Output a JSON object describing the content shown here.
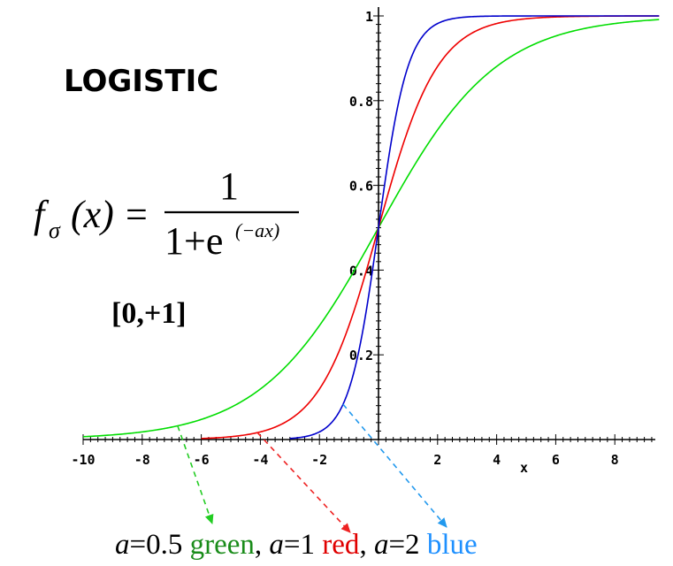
{
  "chart_data": {
    "type": "line",
    "title": "LOGISTIC",
    "formula": {
      "lhs_f": "f",
      "lhs_sub": "σ",
      "lhs_arg": "(x)",
      "eq": "=",
      "numerator": "1",
      "denom_base": "1+e",
      "denom_exp": "(−ax)"
    },
    "range_label": "[0,+1]",
    "xlabel": "x",
    "ylabel": "",
    "xlim": [
      -10,
      9.5
    ],
    "ylim": [
      0,
      1
    ],
    "x_ticks": [
      -10,
      -8,
      -6,
      -4,
      -2,
      2,
      4,
      6,
      8
    ],
    "x_tick_labels": [
      "-10",
      "-8",
      "-6",
      "-4",
      "-2",
      "2",
      "4",
      "6",
      "8"
    ],
    "y_ticks": [
      0.2,
      0.4,
      0.6,
      0.8,
      1
    ],
    "y_tick_labels": [
      "0.2",
      "0.4",
      "0.6",
      "0.8",
      "1"
    ],
    "grid": false,
    "function": "1/(1+exp(-a*x))",
    "series": [
      {
        "a": 0.5,
        "color": "#00dd00",
        "x_range": [
          -10,
          9.5
        ]
      },
      {
        "a": 1,
        "color": "#ee0000",
        "x_range": [
          -6,
          9.5
        ]
      },
      {
        "a": 2,
        "color": "#0000cc",
        "x_range": [
          -3,
          9.5
        ]
      }
    ],
    "annotations": [
      {
        "from_x": -6.8,
        "color": "#22cc22",
        "curve_a": 0.5
      },
      {
        "from_x": -4.1,
        "color": "#ee2222",
        "curve_a": 1
      },
      {
        "from_x": -1.2,
        "color": "#2299ee",
        "curve_a": 2
      }
    ]
  },
  "caption": {
    "parts": [
      {
        "text": "a",
        "color": "#000000",
        "italic": true
      },
      {
        "text": "=0.5 ",
        "color": "#000000",
        "italic": false
      },
      {
        "text": "green",
        "color": "#1a8c1a",
        "italic": false
      },
      {
        "text": ", ",
        "color": "#000000",
        "italic": false
      },
      {
        "text": "a",
        "color": "#000000",
        "italic": true
      },
      {
        "text": "=1 ",
        "color": "#000000",
        "italic": false
      },
      {
        "text": "red",
        "color": "#e00000",
        "italic": false
      },
      {
        "text": ", ",
        "color": "#000000",
        "italic": false
      },
      {
        "text": "a",
        "color": "#000000",
        "italic": true
      },
      {
        "text": "=2 ",
        "color": "#000000",
        "italic": false
      },
      {
        "text": "blue",
        "color": "#1e90ff",
        "italic": false
      }
    ]
  }
}
